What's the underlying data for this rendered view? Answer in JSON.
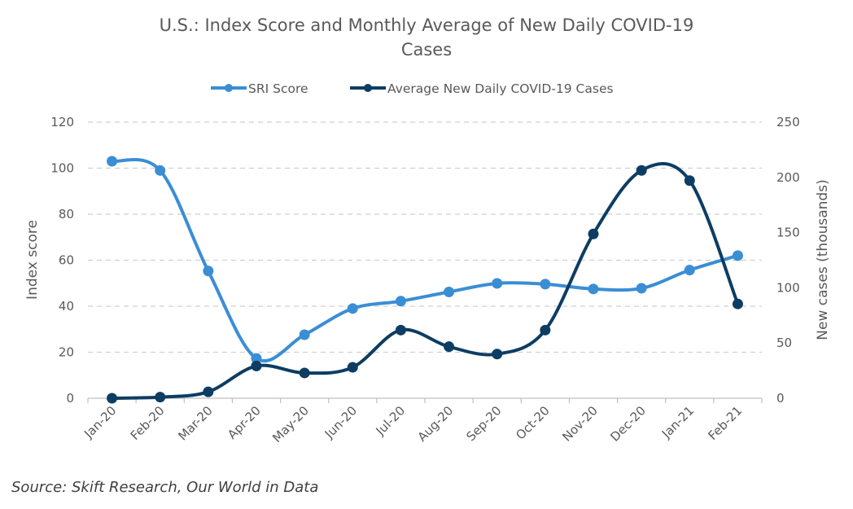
{
  "chart_data": {
    "type": "line",
    "title_line1": "U.S.: Index Score and Monthly Average of New Daily COVID-19",
    "title_line2": "Cases",
    "categories": [
      "Jan-20",
      "Feb-20",
      "Mar-20",
      "Apr-20",
      "May-20",
      "Jun-20",
      "Jul-20",
      "Aug-20",
      "Sep-20",
      "Oct-20",
      "Nov-20",
      "Dec-20",
      "Jan-21",
      "Feb-21"
    ],
    "series": [
      {
        "name": "SRI Score",
        "axis": "left",
        "color": "#3A8ED4",
        "values": [
          103,
          99,
          55.3,
          17.3,
          27.6,
          39,
          42.2,
          46.2,
          49.9,
          49.6,
          47.5,
          47.8,
          55.7,
          62
        ]
      },
      {
        "name": "Average New Daily COVID-19 Cases",
        "axis": "right",
        "color": "#0D3D63",
        "values": [
          0,
          1,
          5.8,
          29.2,
          22.9,
          28,
          61.7,
          46.7,
          40,
          61.7,
          148.8,
          206.3,
          197.1,
          85.4
        ]
      }
    ],
    "y_left": {
      "label": "Index score",
      "min": 0,
      "max": 120,
      "ticks": [
        0,
        20,
        40,
        60,
        80,
        100,
        120
      ]
    },
    "y_right": {
      "label": "New cases (thousands)",
      "min": 0,
      "max": 250,
      "ticks": [
        0,
        50,
        100,
        150,
        200,
        250
      ]
    },
    "grid": true,
    "legend_position": "top"
  },
  "source": "Source: Skift Research, Our World in Data"
}
